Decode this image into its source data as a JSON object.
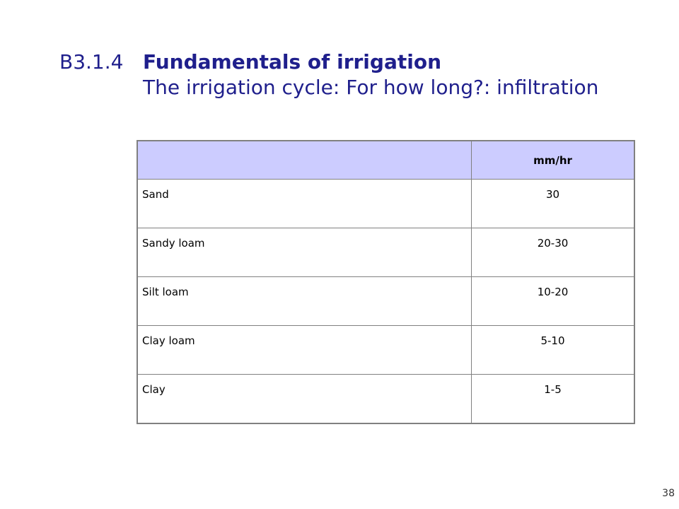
{
  "heading": {
    "number": "B3.1.4",
    "title": "Fundamentals of irrigation",
    "subtitle": "The irrigation cycle: For how long?: infiltration"
  },
  "table": {
    "header": {
      "label_column": "",
      "value_column": "mm/hr"
    },
    "rows": [
      {
        "soil": "Sand",
        "rate": "30"
      },
      {
        "soil": "Sandy loam",
        "rate": "20-30"
      },
      {
        "soil": "Silt loam",
        "rate": "10-20"
      },
      {
        "soil": "Clay loam",
        "rate": "5-10"
      },
      {
        "soil": "Clay",
        "rate": "1-5"
      }
    ]
  },
  "page_number": "38",
  "colors": {
    "heading_text": "#1f1f8c",
    "table_header_fill": "#ccccff",
    "table_border": "#808080"
  }
}
